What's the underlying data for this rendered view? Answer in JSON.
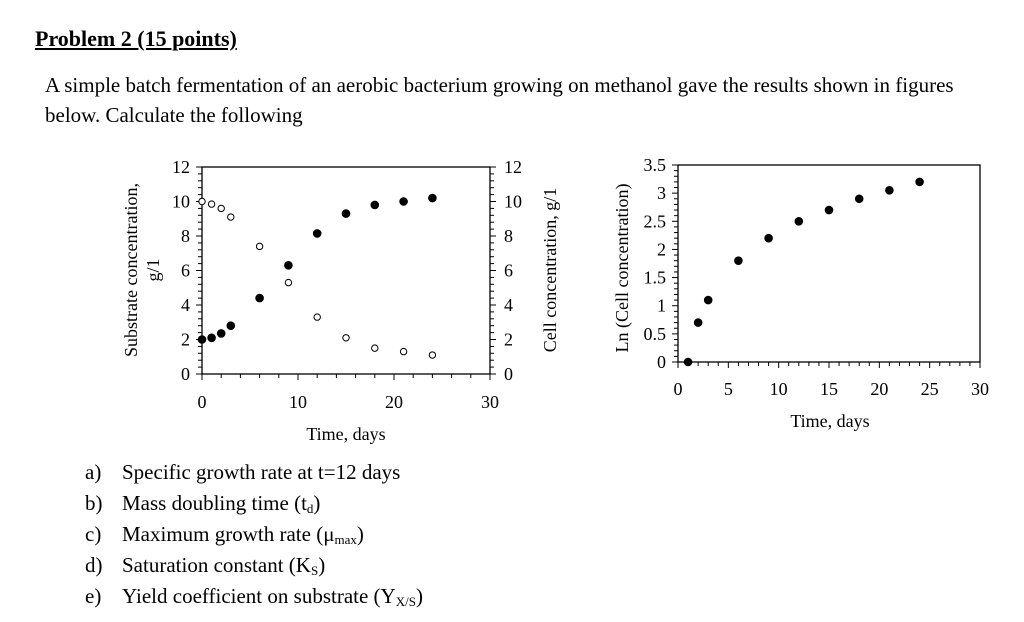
{
  "title": "Problem 2 (15 points)",
  "intro": "A simple batch fermentation of an aerobic bacterium growing on methanol gave the results shown in figures below. Calculate the following",
  "questions": [
    {
      "label": "a)",
      "text": "Specific growth rate at t=12 days",
      "sub": "",
      "after": ""
    },
    {
      "label": "b)",
      "text": "Mass doubling time (t",
      "sub": "d",
      "after": ")"
    },
    {
      "label": "c)",
      "text": "Maximum growth rate (μ",
      "sub": "max",
      "after": ")"
    },
    {
      "label": "d)",
      "text": "Saturation constant (K",
      "sub": "S",
      "after": ")"
    },
    {
      "label": "e)",
      "text": "Yield coefficient on substrate (Y",
      "sub": "X/S",
      "after": ")"
    }
  ],
  "chart_data": [
    {
      "type": "scatter",
      "xlabel": "Time, days",
      "ylabel_left_line1": "Substrate concentration,",
      "ylabel_left_line2": "g/1",
      "ylabel_right": "Cell concentration, g/1",
      "xlim": [
        0,
        30
      ],
      "ylim": [
        0,
        12
      ],
      "x_ticks": [
        "0",
        "10",
        "20",
        "30"
      ],
      "y_ticks": [
        "0",
        "2",
        "4",
        "6",
        "8",
        "10",
        "12"
      ],
      "grid": false,
      "series": [
        {
          "marker": "filled-circle",
          "axis": "right",
          "x": [
            0,
            1,
            2,
            3,
            6,
            9,
            12,
            15,
            18,
            21,
            24
          ],
          "y": [
            2.0,
            2.1,
            2.35,
            2.8,
            4.4,
            6.3,
            8.15,
            9.3,
            9.8,
            10.0,
            10.2
          ]
        },
        {
          "marker": "open-circle",
          "axis": "left",
          "x": [
            0,
            1,
            2,
            3,
            6,
            9,
            12,
            15,
            18,
            21,
            24
          ],
          "y": [
            10.0,
            9.85,
            9.6,
            9.1,
            7.4,
            5.3,
            3.3,
            2.1,
            1.5,
            1.3,
            1.1
          ]
        }
      ]
    },
    {
      "type": "scatter",
      "xlabel": "Time, days",
      "ylabel": "Ln (Cell concentration)",
      "xlim": [
        0,
        30
      ],
      "ylim": [
        0,
        3.5
      ],
      "x_ticks": [
        "0",
        "5",
        "10",
        "15",
        "20",
        "25",
        "30"
      ],
      "y_ticks": [
        "0",
        "0.5",
        "1",
        "1.5",
        "2",
        "2.5",
        "3",
        "3.5"
      ],
      "grid": false,
      "series": [
        {
          "marker": "filled-circle",
          "x": [
            1,
            2,
            3,
            6,
            9,
            12,
            15,
            18,
            21,
            24
          ],
          "y": [
            0,
            0.7,
            1.1,
            1.8,
            2.2,
            2.5,
            2.7,
            2.9,
            3.05,
            3.2
          ]
        }
      ]
    }
  ]
}
